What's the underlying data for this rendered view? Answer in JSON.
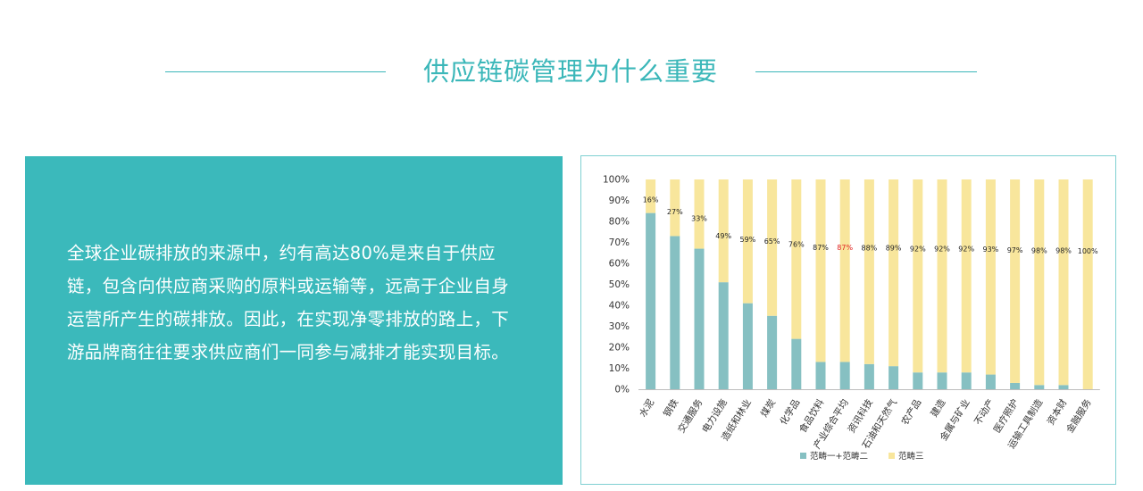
{
  "header": {
    "title": "供应链碳管理为什么重要"
  },
  "info": {
    "text": "全球企业碳排放的来源中，约有高达80%是来自于供应链，包含向供应商采购的原料或运输等，远高于企业自身运营所产生的碳排放。因此，在实现净零排放的路上，下游品牌商往往要求供应商们一同参与减排才能实现目标。"
  },
  "chart_data": {
    "type": "bar",
    "stacked": true,
    "categories": [
      "水泥",
      "钢铁",
      "交通服务",
      "电力设施",
      "造纸和林业",
      "煤炭",
      "化学品",
      "食品饮料",
      "产业综合平均",
      "资讯科技",
      "石油和天然气",
      "农产品",
      "建造",
      "金属与矿业",
      "不动产",
      "医疗照护",
      "运输工具制造",
      "资本财",
      "金融服务"
    ],
    "series": [
      {
        "name": "范畴一+范畴二",
        "values": [
          84,
          73,
          67,
          51,
          41,
          35,
          24,
          13,
          13,
          12,
          11,
          8,
          8,
          8,
          7,
          3,
          2,
          2,
          0
        ],
        "color": "#86c0c2"
      },
      {
        "name": "范畴三",
        "values": [
          16,
          27,
          33,
          49,
          59,
          65,
          76,
          87,
          87,
          88,
          89,
          92,
          92,
          92,
          93,
          97,
          98,
          98,
          100
        ],
        "color": "#f8e69c"
      }
    ],
    "data_labels": [
      "16%",
      "27%",
      "33%",
      "49%",
      "59%",
      "65%",
      "76%",
      "87%",
      "87%",
      "88%",
      "89%",
      "92%",
      "92%",
      "92%",
      "93%",
      "97%",
      "98%",
      "98%",
      "100%"
    ],
    "highlight_index": 8,
    "highlight_color": "#e02020",
    "yticks": [
      "0%",
      "10%",
      "20%",
      "30%",
      "40%",
      "50%",
      "60%",
      "70%",
      "80%",
      "90%",
      "100%"
    ],
    "ylim": [
      0,
      100
    ],
    "legend_position": "bottom-center",
    "grid": false
  }
}
